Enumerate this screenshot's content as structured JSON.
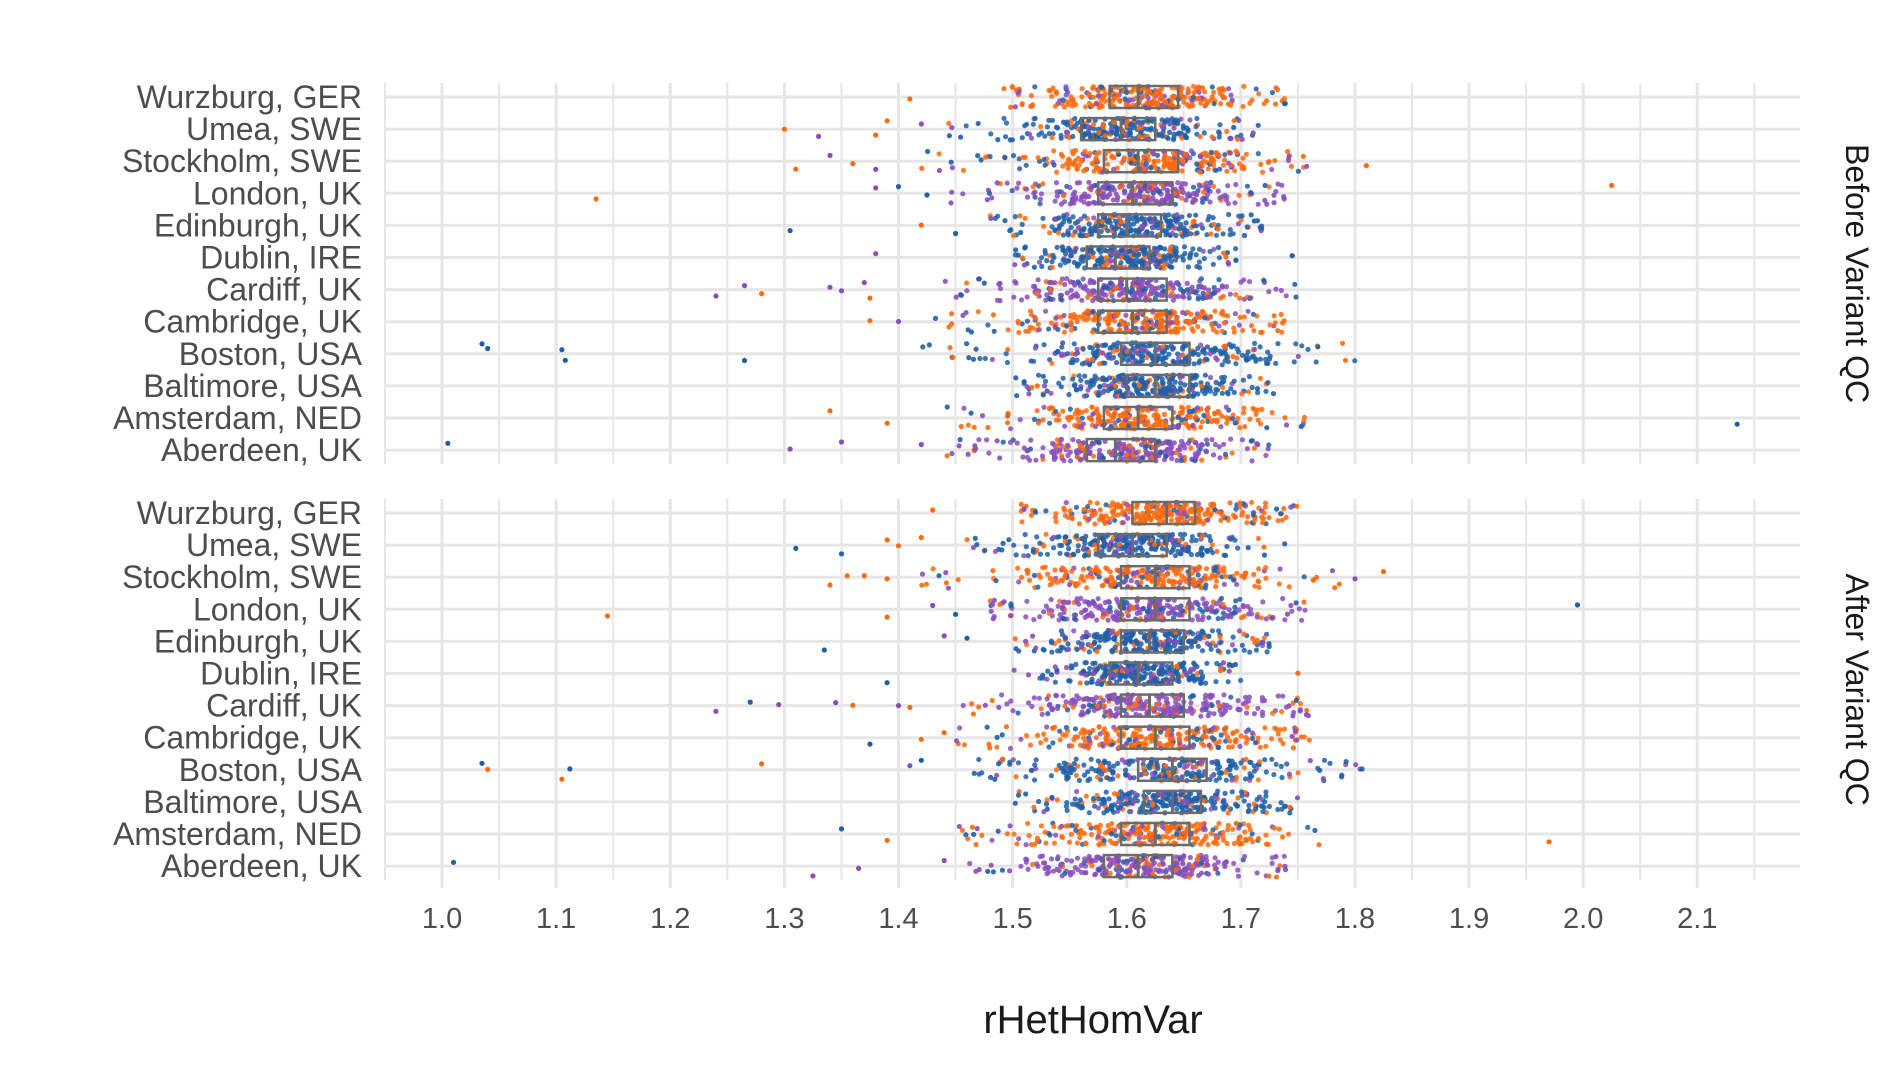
{
  "chart_data": {
    "type": "scatter",
    "subtype": "jitter strip plot with boxplots, faceted",
    "xlabel": "rHetHomVar",
    "ylabel": "",
    "xlim": [
      0.95,
      2.19
    ],
    "x_ticks": [
      1.0,
      1.1,
      1.2,
      1.3,
      1.4,
      1.5,
      1.6,
      1.7,
      1.8,
      1.9,
      2.0,
      2.1
    ],
    "x_tick_labels": [
      "1.0",
      "1.1",
      "1.2",
      "1.3",
      "1.4",
      "1.5",
      "1.6",
      "1.7",
      "1.8",
      "1.9",
      "2.0",
      "2.1"
    ],
    "categories": [
      "Wurzburg, GER",
      "Umea, SWE",
      "Stockholm, SWE",
      "London, UK",
      "Edinburgh, UK",
      "Dublin, IRE",
      "Cardiff, UK",
      "Cambridge, UK",
      "Boston, USA",
      "Baltimore, USA",
      "Amsterdam, NED",
      "Aberdeen, UK"
    ],
    "grid": true,
    "legend": "none",
    "colors": {
      "orange": "#ff6a0d",
      "blue": "#1f5fa8",
      "purple": "#8a4dbd",
      "box": "#6b6b6b",
      "grid": "#e6e6e6"
    },
    "panels": [
      {
        "strip": "Before Variant QC",
        "series": [
          {
            "category": "Wurzburg, GER",
            "color": "orange",
            "box": {
              "q1": 1.585,
              "median": 1.61,
              "q3": 1.645
            },
            "core": [
              1.52,
              1.72
            ],
            "spread": [
              1.49,
              1.74
            ],
            "outliers": [
              1.41
            ]
          },
          {
            "category": "Umea, SWE",
            "color": "blue",
            "box": {
              "q1": 1.56,
              "median": 1.595,
              "q3": 1.625
            },
            "core": [
              1.5,
              1.69
            ],
            "spread": [
              1.44,
              1.72
            ],
            "outliers": [
              1.3,
              1.33,
              1.38,
              1.39,
              1.42
            ]
          },
          {
            "category": "Stockholm, SWE",
            "color": "orange",
            "box": {
              "q1": 1.58,
              "median": 1.61,
              "q3": 1.645
            },
            "core": [
              1.5,
              1.74
            ],
            "spread": [
              1.41,
              1.76
            ],
            "outliers": [
              1.31,
              1.34,
              1.36,
              1.38,
              1.81
            ]
          },
          {
            "category": "London, UK",
            "color": "purple",
            "box": {
              "q1": 1.575,
              "median": 1.605,
              "q3": 1.64
            },
            "core": [
              1.5,
              1.72
            ],
            "spread": [
              1.44,
              1.74
            ],
            "outliers": [
              1.135,
              1.38,
              1.4,
              1.425,
              2.025
            ]
          },
          {
            "category": "Edinburgh, UK",
            "color": "blue",
            "box": {
              "q1": 1.575,
              "median": 1.6,
              "q3": 1.63
            },
            "core": [
              1.51,
              1.7
            ],
            "spread": [
              1.48,
              1.72
            ],
            "outliers": [
              1.305,
              1.42,
              1.45
            ]
          },
          {
            "category": "Dublin, IRE",
            "color": "blue",
            "box": {
              "q1": 1.565,
              "median": 1.59,
              "q3": 1.62
            },
            "core": [
              1.52,
              1.68
            ],
            "spread": [
              1.5,
              1.7
            ],
            "outliers": [
              1.38,
              1.745
            ]
          },
          {
            "category": "Cardiff, UK",
            "color": "purple",
            "box": {
              "q1": 1.575,
              "median": 1.6,
              "q3": 1.635
            },
            "core": [
              1.49,
              1.72
            ],
            "spread": [
              1.44,
              1.75
            ],
            "outliers": [
              1.24,
              1.265,
              1.28,
              1.34,
              1.35,
              1.37,
              1.375
            ]
          },
          {
            "category": "Cambridge, UK",
            "color": "orange",
            "box": {
              "q1": 1.575,
              "median": 1.605,
              "q3": 1.635
            },
            "core": [
              1.5,
              1.72
            ],
            "spread": [
              1.43,
              1.74
            ],
            "outliers": [
              1.375,
              1.4
            ]
          },
          {
            "category": "Boston, USA",
            "color": "blue",
            "box": {
              "q1": 1.595,
              "median": 1.625,
              "q3": 1.655
            },
            "core": [
              1.5,
              1.75
            ],
            "spread": [
              1.41,
              1.8
            ],
            "outliers": [
              1.035,
              1.04,
              1.105,
              1.108,
              1.265
            ]
          },
          {
            "category": "Baltimore, USA",
            "color": "blue",
            "box": {
              "q1": 1.6,
              "median": 1.625,
              "q3": 1.655
            },
            "core": [
              1.53,
              1.71
            ],
            "spread": [
              1.5,
              1.73
            ],
            "outliers": []
          },
          {
            "category": "Amsterdam, NED",
            "color": "orange",
            "box": {
              "q1": 1.58,
              "median": 1.61,
              "q3": 1.64
            },
            "core": [
              1.5,
              1.72
            ],
            "spread": [
              1.44,
              1.76
            ],
            "outliers": [
              1.34,
              1.39,
              2.135
            ]
          },
          {
            "category": "Aberdeen, UK",
            "color": "purple",
            "box": {
              "q1": 1.565,
              "median": 1.59,
              "q3": 1.625
            },
            "core": [
              1.5,
              1.7
            ],
            "spread": [
              1.44,
              1.73
            ],
            "outliers": [
              1.005,
              1.305,
              1.35,
              1.42
            ]
          }
        ]
      },
      {
        "strip": "After Variant QC",
        "series": [
          {
            "category": "Wurzburg, GER",
            "color": "orange",
            "box": {
              "q1": 1.605,
              "median": 1.635,
              "q3": 1.66
            },
            "core": [
              1.53,
              1.73
            ],
            "spread": [
              1.5,
              1.75
            ],
            "outliers": [
              1.43
            ]
          },
          {
            "category": "Umea, SWE",
            "color": "blue",
            "box": {
              "q1": 1.575,
              "median": 1.605,
              "q3": 1.635
            },
            "core": [
              1.5,
              1.7
            ],
            "spread": [
              1.45,
              1.74
            ],
            "outliers": [
              1.31,
              1.35,
              1.39,
              1.4,
              1.42
            ]
          },
          {
            "category": "Stockholm, SWE",
            "color": "orange",
            "box": {
              "q1": 1.595,
              "median": 1.625,
              "q3": 1.655
            },
            "core": [
              1.5,
              1.74
            ],
            "spread": [
              1.42,
              1.79
            ],
            "outliers": [
              1.34,
              1.355,
              1.37,
              1.39,
              1.8,
              1.825
            ]
          },
          {
            "category": "London, UK",
            "color": "purple",
            "box": {
              "q1": 1.595,
              "median": 1.625,
              "q3": 1.655
            },
            "core": [
              1.5,
              1.74
            ],
            "spread": [
              1.48,
              1.76
            ],
            "outliers": [
              1.145,
              1.39,
              1.43,
              1.45,
              1.995
            ]
          },
          {
            "category": "Edinburgh, UK",
            "color": "blue",
            "box": {
              "q1": 1.595,
              "median": 1.62,
              "q3": 1.65
            },
            "core": [
              1.53,
              1.71
            ],
            "spread": [
              1.5,
              1.73
            ],
            "outliers": [
              1.335,
              1.44,
              1.46
            ]
          },
          {
            "category": "Dublin, IRE",
            "color": "blue",
            "box": {
              "q1": 1.585,
              "median": 1.61,
              "q3": 1.64
            },
            "core": [
              1.54,
              1.68
            ],
            "spread": [
              1.5,
              1.7
            ],
            "outliers": [
              1.39,
              1.75
            ]
          },
          {
            "category": "Cardiff, UK",
            "color": "purple",
            "box": {
              "q1": 1.595,
              "median": 1.62,
              "q3": 1.65
            },
            "core": [
              1.5,
              1.74
            ],
            "spread": [
              1.45,
              1.76
            ],
            "outliers": [
              1.24,
              1.27,
              1.295,
              1.345,
              1.36,
              1.4,
              1.41
            ]
          },
          {
            "category": "Cambridge, UK",
            "color": "orange",
            "box": {
              "q1": 1.595,
              "median": 1.625,
              "q3": 1.655
            },
            "core": [
              1.5,
              1.74
            ],
            "spread": [
              1.45,
              1.76
            ],
            "outliers": [
              1.375,
              1.42,
              1.44
            ]
          },
          {
            "category": "Boston, USA",
            "color": "blue",
            "box": {
              "q1": 1.61,
              "median": 1.64,
              "q3": 1.67
            },
            "core": [
              1.5,
              1.76
            ],
            "spread": [
              1.46,
              1.81
            ],
            "outliers": [
              1.035,
              1.04,
              1.105,
              1.112,
              1.28,
              1.41,
              1.42
            ]
          },
          {
            "category": "Baltimore, USA",
            "color": "blue",
            "box": {
              "q1": 1.615,
              "median": 1.64,
              "q3": 1.665
            },
            "core": [
              1.54,
              1.73
            ],
            "spread": [
              1.5,
              1.75
            ],
            "outliers": []
          },
          {
            "category": "Amsterdam, NED",
            "color": "orange",
            "box": {
              "q1": 1.595,
              "median": 1.625,
              "q3": 1.655
            },
            "core": [
              1.5,
              1.74
            ],
            "spread": [
              1.45,
              1.77
            ],
            "outliers": [
              1.35,
              1.39,
              1.97
            ]
          },
          {
            "category": "Aberdeen, UK",
            "color": "purple",
            "box": {
              "q1": 1.58,
              "median": 1.61,
              "q3": 1.64
            },
            "core": [
              1.5,
              1.72
            ],
            "spread": [
              1.46,
              1.74
            ],
            "outliers": [
              1.01,
              1.325,
              1.365,
              1.44
            ]
          }
        ]
      }
    ]
  }
}
